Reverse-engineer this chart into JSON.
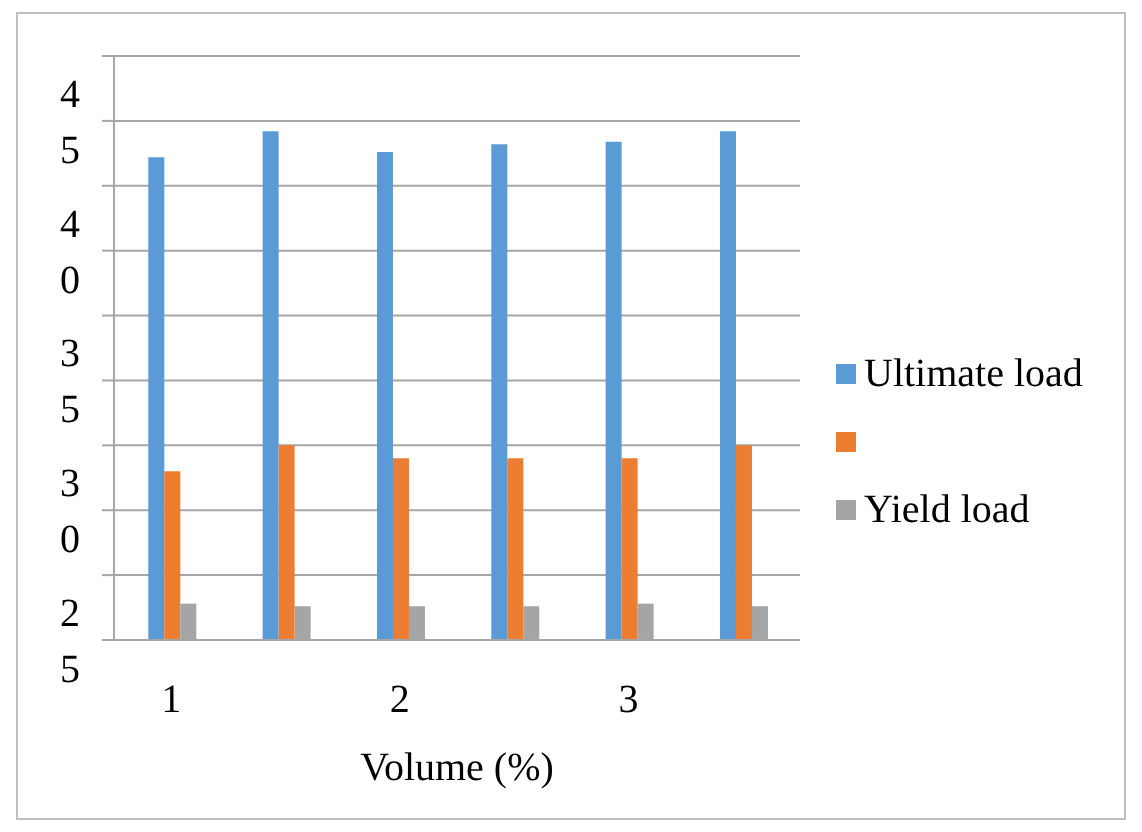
{
  "chart_data": {
    "type": "bar",
    "xlabel": "Volume (%)",
    "categories": [
      "1",
      null,
      "2",
      null,
      "3",
      null
    ],
    "series": [
      {
        "name": "Ultimate load",
        "color": "#5b9bd5",
        "values": [
          43.6,
          44.6,
          43.8,
          44.1,
          44.2,
          44.6
        ]
      },
      {
        "color": "#ed7d31",
        "values": [
          31.5,
          32.5,
          32.0,
          32.0,
          32.0,
          32.5
        ]
      },
      {
        "name": "Yield load",
        "color": "#a5a5a5",
        "values": [
          26.4,
          26.3,
          26.3,
          26.3,
          26.4,
          26.3
        ]
      }
    ],
    "ylim": [
      25,
      47.5
    ],
    "yticks": [
      25,
      {
        "value": 27.5,
        "label": null
      },
      30,
      {
        "value": 32.5,
        "label": null
      },
      35,
      {
        "value": 37.5,
        "label": null
      },
      40,
      {
        "value": 42.5,
        "label": null
      },
      45,
      {
        "value": 47.5,
        "label": null
      }
    ],
    "grid": "y",
    "legend": "right"
  }
}
